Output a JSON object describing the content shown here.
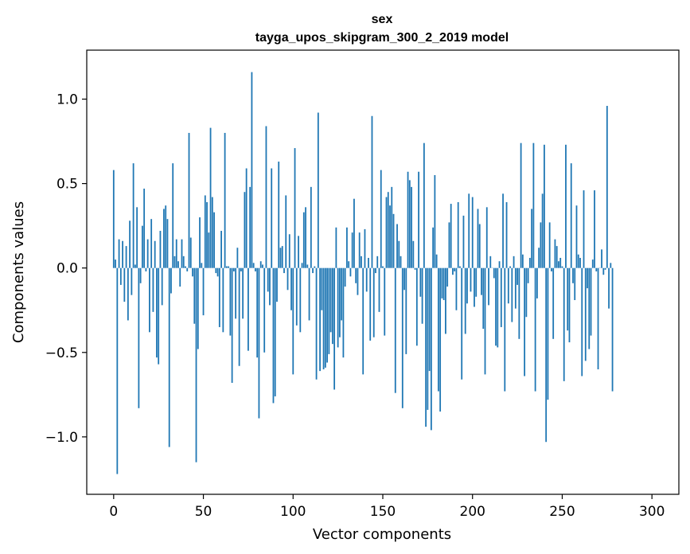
{
  "chart_data": {
    "type": "bar",
    "title": "sex",
    "subtitle": "tayga_upos_skipgram_300_2_2019 model",
    "xlabel": "Vector components",
    "ylabel": "Components values",
    "xlim": [
      -15,
      315
    ],
    "ylim": [
      -1.34,
      1.29
    ],
    "xticks": [
      0,
      50,
      100,
      150,
      200,
      250,
      300
    ],
    "yticks": [
      -1.0,
      -0.5,
      0.0,
      0.5,
      1.0
    ],
    "ytick_labels": [
      "−1.0",
      "−0.5",
      "0.0",
      "0.5",
      "1.0"
    ],
    "color": "#1f77b4",
    "values": [
      0.58,
      0.05,
      -1.22,
      0.17,
      -0.1,
      0.16,
      -0.2,
      0.13,
      -0.31,
      0.28,
      -0.16,
      0.62,
      0.02,
      0.36,
      -0.83,
      -0.09,
      0.25,
      0.47,
      -0.02,
      0.17,
      -0.38,
      0.29,
      -0.26,
      0.16,
      -0.53,
      -0.57,
      0.22,
      -0.22,
      0.35,
      0.37,
      0.29,
      -1.06,
      -0.15,
      0.62,
      0.07,
      0.17,
      0.04,
      -0.11,
      0.17,
      0.07,
      0.01,
      -0.02,
      0.8,
      0.18,
      -0.05,
      -0.33,
      -1.15,
      -0.48,
      0.3,
      0.03,
      -0.28,
      0.43,
      0.39,
      0.21,
      0.83,
      0.42,
      0.33,
      -0.03,
      -0.05,
      -0.35,
      0.22,
      -0.38,
      0.8,
      0.01,
      0.01,
      -0.4,
      -0.68,
      -0.02,
      -0.3,
      0.12,
      -0.58,
      -0.02,
      -0.3,
      0.45,
      0.59,
      -0.49,
      0.48,
      1.16,
      0.03,
      -0.02,
      -0.53,
      -0.89,
      0.04,
      0.02,
      -0.5,
      0.84,
      -0.14,
      -0.22,
      0.59,
      -0.8,
      -0.76,
      -0.2,
      0.63,
      0.12,
      0.13,
      -0.03,
      0.43,
      -0.13,
      0.2,
      -0.25,
      -0.63,
      0.71,
      -0.34,
      0.19,
      -0.38,
      0.03,
      0.33,
      0.36,
      0.02,
      -0.31,
      0.48,
      -0.03,
      0.01,
      -0.66,
      0.92,
      -0.61,
      -0.25,
      -0.6,
      -0.59,
      -0.56,
      -0.51,
      -0.38,
      -0.45,
      -0.72,
      0.24,
      -0.47,
      -0.41,
      -0.31,
      -0.53,
      -0.11,
      0.24,
      0.04,
      -0.05,
      0.21,
      0.41,
      -0.09,
      -0.16,
      0.21,
      0.07,
      -0.63,
      0.23,
      -0.14,
      0.06,
      -0.43,
      0.9,
      -0.41,
      -0.03,
      0.07,
      -0.26,
      0.58,
      0.01,
      -0.4,
      0.42,
      0.45,
      0.37,
      0.48,
      0.32,
      -0.74,
      0.26,
      0.16,
      0.07,
      -0.83,
      -0.13,
      -0.51,
      0.57,
      0.52,
      0.48,
      0.16,
      -0.01,
      -0.46,
      0.57,
      -0.17,
      -0.33,
      0.74,
      -0.94,
      -0.84,
      -0.61,
      -0.96,
      0.24,
      0.55,
      0.08,
      -0.73,
      -0.85,
      -0.18,
      -0.19,
      -0.39,
      -0.11,
      0.27,
      0.38,
      -0.04,
      -0.02,
      -0.25,
      0.39,
      0.01,
      -0.66,
      0.31,
      -0.39,
      -0.21,
      0.44,
      -0.14,
      0.42,
      -0.23,
      -0.17,
      0.35,
      0.26,
      -0.16,
      -0.36,
      -0.63,
      0.36,
      -0.22,
      0.07,
      0.0,
      -0.06,
      -0.46,
      -0.47,
      0.04,
      -0.35,
      0.44,
      -0.73,
      0.39,
      -0.21,
      0.01,
      -0.32,
      0.07,
      -0.24,
      -0.1,
      -0.42,
      0.74,
      0.08,
      -0.64,
      -0.29,
      -0.09,
      0.06,
      0.35,
      0.74,
      -0.73,
      -0.18,
      0.12,
      0.27,
      0.44,
      0.73,
      -1.03,
      -0.78,
      0.27,
      -0.02,
      -0.42,
      0.17,
      0.13,
      0.04,
      0.06,
      0.01,
      -0.67,
      0.73,
      -0.37,
      -0.44,
      0.62,
      -0.09,
      -0.19,
      0.37,
      0.08,
      0.06,
      -0.64,
      0.46,
      -0.55,
      -0.12,
      -0.48,
      -0.4,
      0.05,
      0.46,
      -0.02,
      -0.6,
      0.0,
      0.11,
      -0.04,
      -0.01,
      0.96,
      -0.24,
      0.03,
      -0.73
    ]
  }
}
